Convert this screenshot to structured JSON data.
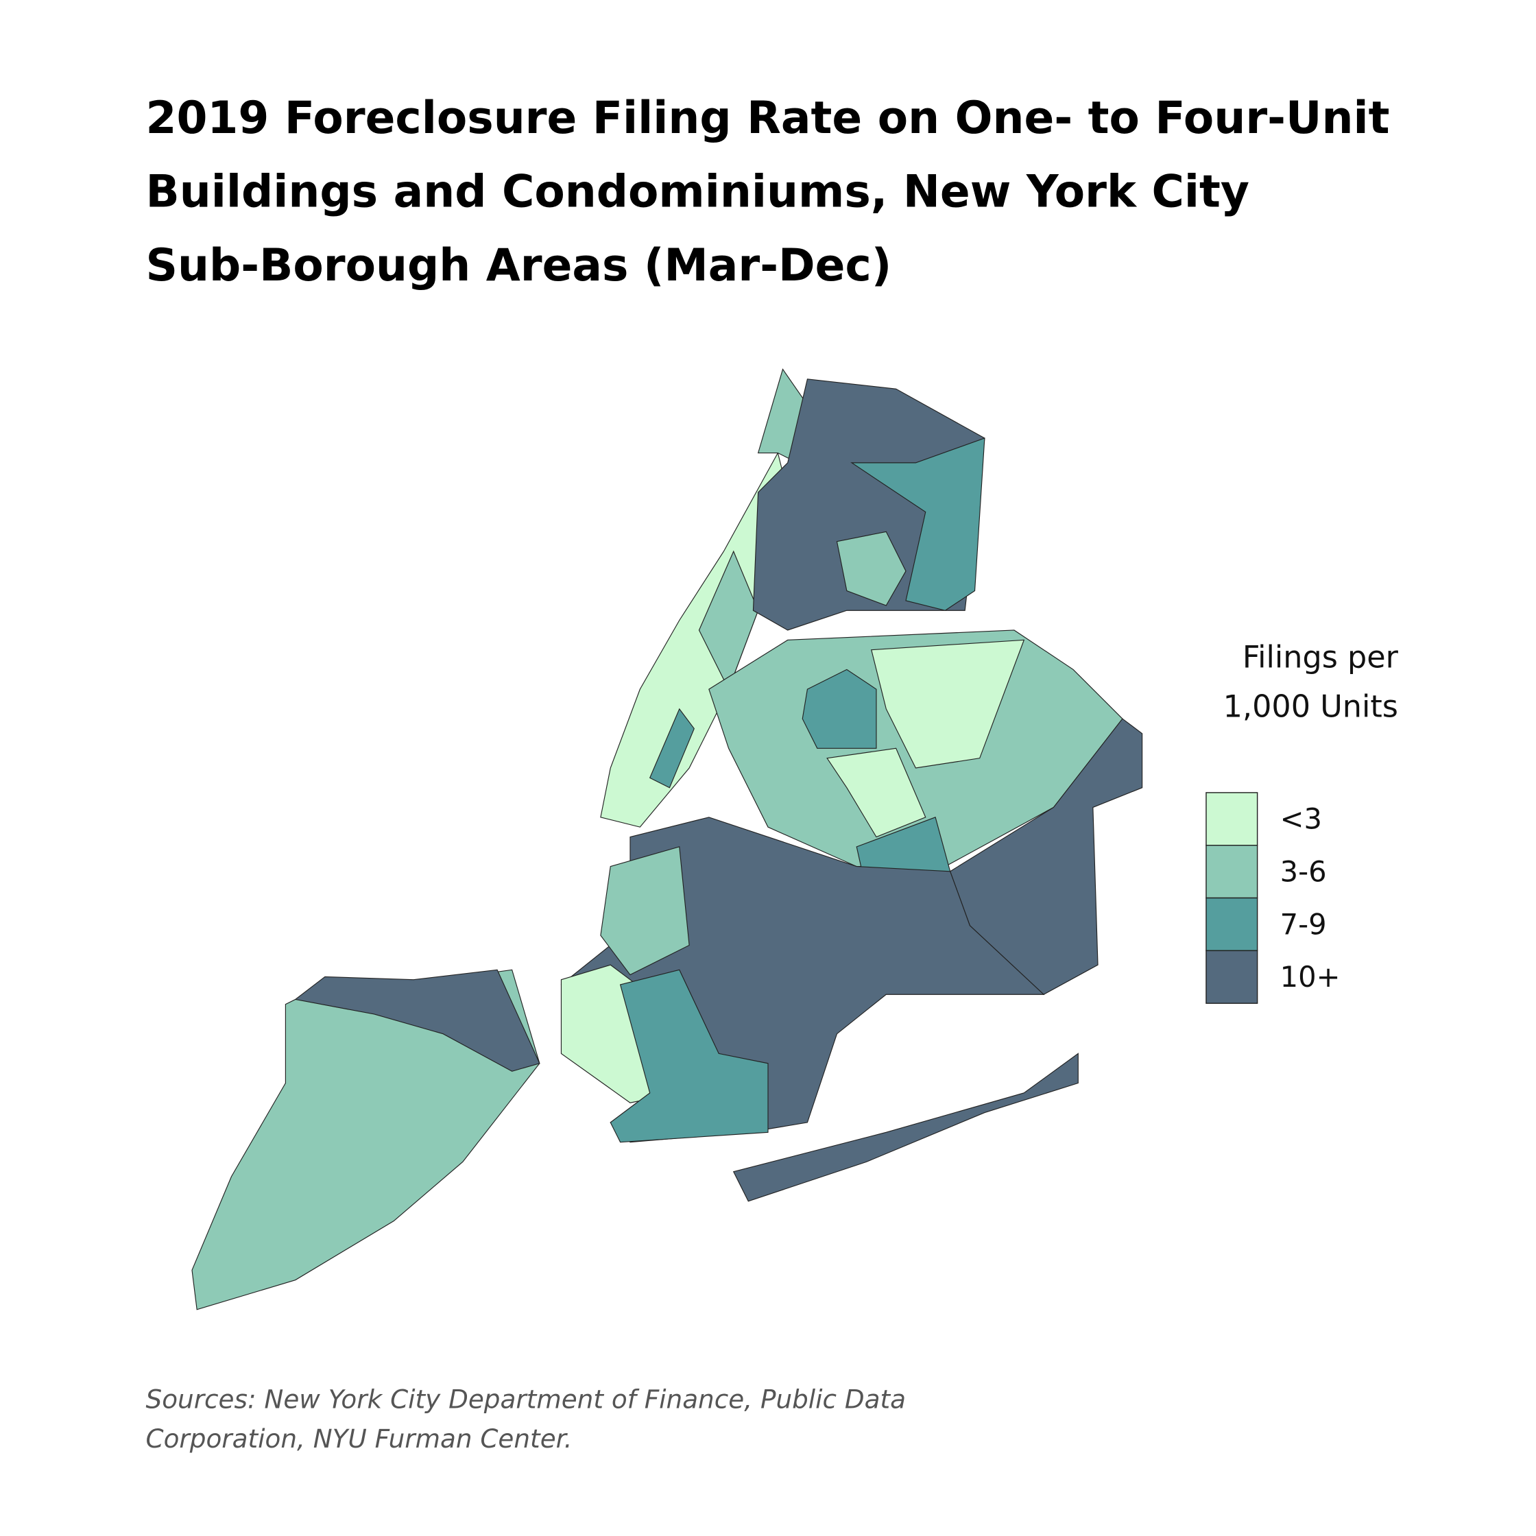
{
  "title_lines": [
    "2019 Foreclosure Filing Rate on One- to Four-Unit",
    "Buildings and Condominiums, New York City",
    "Sub-Borough Areas (Mar-Dec)"
  ],
  "legend": {
    "title_lines": [
      "Filings per",
      "1,000 Units"
    ],
    "items": [
      {
        "label": "<3",
        "color": "#ccf9d2"
      },
      {
        "label": "3-6",
        "color": "#8ecab6"
      },
      {
        "label": "7-9",
        "color": "#559e9e"
      },
      {
        "label": "10+",
        "color": "#546a7e"
      }
    ]
  },
  "source_lines": [
    "Sources: New York City Department of Finance, Public Data",
    "Corporation, NYU Furman Center."
  ]
}
